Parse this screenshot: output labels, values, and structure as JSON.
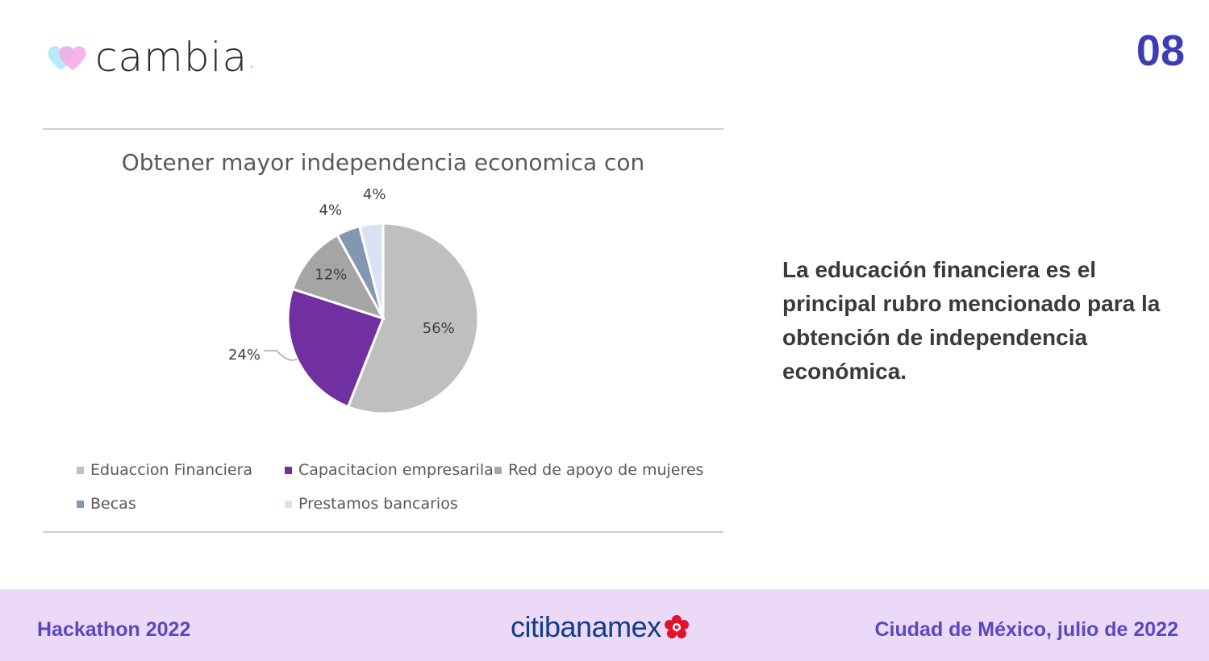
{
  "header": {
    "logo_text": "cambia",
    "logo_dot": ".",
    "page_number": "08"
  },
  "chart_data": {
    "type": "pie",
    "title": "Obtener mayor independencia economica con",
    "categories": [
      "Eduaccion Financiera",
      "Capacitacion empresarila",
      "Red de apoyo de mujeres",
      "Becas",
      "Prestamos bancarios"
    ],
    "values": [
      56,
      24,
      12,
      4,
      4
    ],
    "data_labels": [
      "56%",
      "24%",
      "12%",
      "4%",
      "4%"
    ],
    "colors": [
      "#bfbfbf",
      "#7030a0",
      "#a5a5a5",
      "#8497b0",
      "#dae3f3"
    ],
    "legend_position": "bottom"
  },
  "takeaway": "La educación financiera es el principal rubro mencionado para la obtención de independencia económica.",
  "footer": {
    "left": "Hackathon 2022",
    "sponsor": "citibanamex",
    "right": "Ciudad de México, julio de 2022"
  },
  "colors": {
    "accent": "#3d3db3",
    "footer_bg": "#ecd9f8",
    "footer_text": "#5a48c0"
  }
}
